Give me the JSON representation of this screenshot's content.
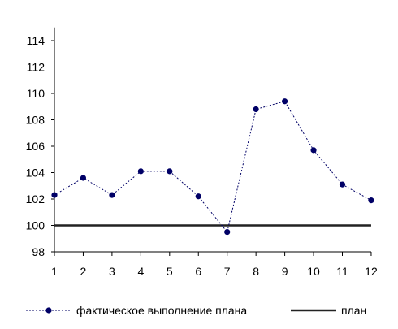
{
  "chart_data": {
    "type": "line",
    "title": "",
    "xlabel": "",
    "ylabel": "",
    "categories": [
      "1",
      "2",
      "3",
      "4",
      "5",
      "6",
      "7",
      "8",
      "9",
      "10",
      "11",
      "12"
    ],
    "ylim": [
      98,
      115
    ],
    "yticks": [
      98,
      100,
      102,
      104,
      106,
      108,
      110,
      112,
      114
    ],
    "grid": false,
    "legend_position": "bottom",
    "series": [
      {
        "name": "фактическое выполнение плана",
        "values": [
          102.3,
          103.6,
          102.3,
          104.1,
          104.1,
          102.2,
          99.5,
          108.8,
          109.4,
          105.7,
          103.1,
          101.9
        ],
        "color": "#000066",
        "style": "dotted-with-markers"
      },
      {
        "name": "план",
        "values": [
          100,
          100,
          100,
          100,
          100,
          100,
          100,
          100,
          100,
          100,
          100,
          100
        ],
        "color": "#222222",
        "style": "solid"
      }
    ]
  }
}
